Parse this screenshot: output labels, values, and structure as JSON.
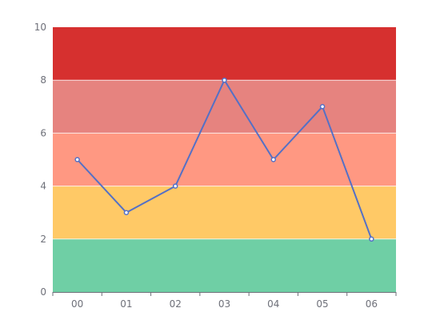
{
  "chart_data": {
    "type": "line",
    "title": "",
    "xlabel": "",
    "ylabel": "",
    "categories": [
      "00",
      "01",
      "02",
      "03",
      "04",
      "05",
      "06"
    ],
    "series": [
      {
        "values": [
          5,
          3,
          4,
          8,
          5,
          7,
          2
        ],
        "color": "#5470c6"
      }
    ],
    "ylim": [
      0,
      10
    ],
    "yticks": [
      0,
      2,
      4,
      6,
      8,
      10
    ],
    "grid": false,
    "bands": [
      {
        "from": 0,
        "to": 2,
        "color": "#6fcfa5"
      },
      {
        "from": 2,
        "to": 4,
        "color": "#ffc966"
      },
      {
        "from": 4,
        "to": 6,
        "color": "#ff9882"
      },
      {
        "from": 6,
        "to": 8,
        "color": "#e6837f"
      },
      {
        "from": 8,
        "to": 10,
        "color": "#d6302f"
      }
    ]
  }
}
